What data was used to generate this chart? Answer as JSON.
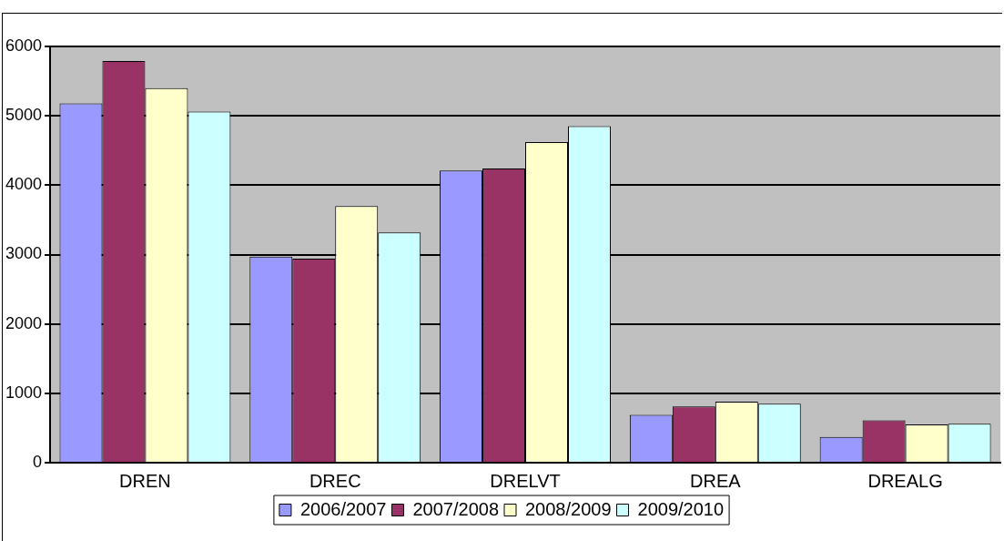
{
  "chart_data": {
    "type": "bar",
    "categories": [
      "DREN",
      "DREC",
      "DRELVT",
      "DREA",
      "DREALG"
    ],
    "series": [
      {
        "name": "2006/2007",
        "color": "#9999ff",
        "values": [
          5180,
          2970,
          4210,
          690,
          370
        ]
      },
      {
        "name": "2007/2008",
        "color": "#993366",
        "values": [
          5790,
          2940,
          4240,
          810,
          610
        ]
      },
      {
        "name": "2008/2009",
        "color": "#ffffcc",
        "values": [
          5400,
          3700,
          4620,
          880,
          550
        ]
      },
      {
        "name": "2009/2010",
        "color": "#ccffff",
        "values": [
          5060,
          3320,
          4850,
          850,
          560
        ]
      }
    ],
    "ylim": [
      0,
      6000
    ],
    "yticks": [
      0,
      1000,
      2000,
      3000,
      4000,
      5000,
      6000
    ],
    "grid": "y",
    "legend": "bottom"
  }
}
